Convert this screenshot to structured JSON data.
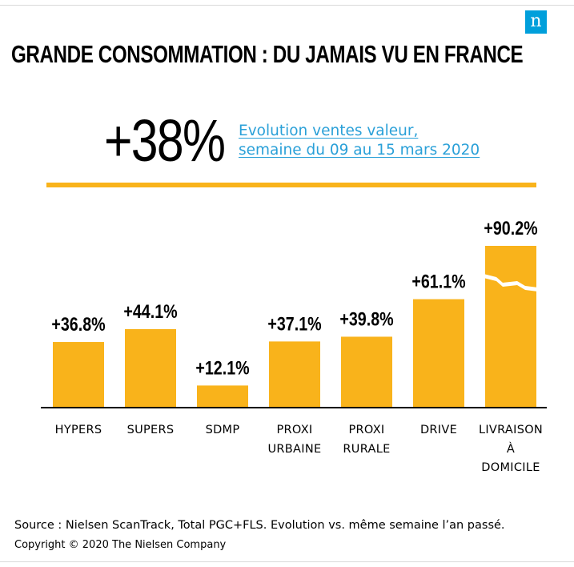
{
  "logo": "n",
  "title": "GRANDE CONSOMMATION : DU JAMAIS VU EN FRANCE",
  "kpi": {
    "value": "+38%",
    "caption_line1": "Evolution ventes valeur,",
    "caption_line2": "semaine du 09 au 15 mars 2020"
  },
  "colors": {
    "bar": "#f9b31b",
    "accent": "#2aa0d8",
    "logo": "#009fdb"
  },
  "chart_data": {
    "type": "bar",
    "categories": [
      [
        "HYPERS"
      ],
      [
        "SUPERS"
      ],
      [
        "SDMP"
      ],
      [
        "PROXI",
        "URBAINE"
      ],
      [
        "PROXI",
        "RURALE"
      ],
      [
        "DRIVE"
      ],
      [
        "LIVRAISON",
        "À",
        "DOMICILE"
      ]
    ],
    "values": [
      36.8,
      44.1,
      12.1,
      37.1,
      39.8,
      61.1,
      90.2
    ],
    "data_labels": [
      "+36.8%",
      "+44.1%",
      "+12.1%",
      "+37.1%",
      "+39.8%",
      "+61.1%",
      "+90.2%"
    ],
    "axis_break": {
      "category_index": 6
    }
  },
  "source": "Source : Nielsen ScanTrack, Total PGC+FLS. Evolution vs. même semaine l’an passé.",
  "copyright": "Copyright © 2020 The Nielsen Company"
}
